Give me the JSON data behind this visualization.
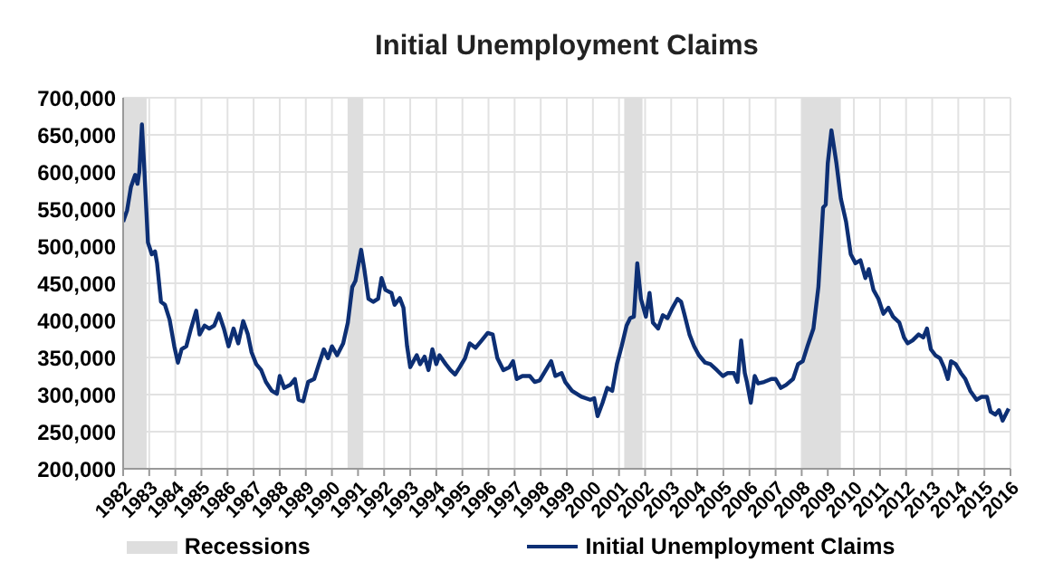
{
  "chart_data": {
    "type": "line",
    "title": "Initial Unemployment Claims",
    "x": [
      1982.0,
      1982.15,
      1982.3,
      1982.46,
      1982.55,
      1982.62,
      1982.72,
      1982.8,
      1982.95,
      1983.1,
      1983.22,
      1983.3,
      1983.45,
      1983.6,
      1983.78,
      1983.96,
      1984.1,
      1984.24,
      1984.42,
      1984.6,
      1984.8,
      1984.93,
      1985.12,
      1985.3,
      1985.49,
      1985.67,
      1985.86,
      1986.04,
      1986.23,
      1986.41,
      1986.6,
      1986.78,
      1986.92,
      1987.1,
      1987.29,
      1987.47,
      1987.7,
      1987.89,
      1988.0,
      1988.17,
      1988.4,
      1988.58,
      1988.72,
      1988.9,
      1989.09,
      1989.32,
      1989.5,
      1989.69,
      1989.85,
      1990.0,
      1990.2,
      1990.43,
      1990.61,
      1990.78,
      1990.9,
      1991.12,
      1991.24,
      1991.4,
      1991.58,
      1991.77,
      1991.9,
      1992.05,
      1992.28,
      1992.4,
      1992.6,
      1992.74,
      1992.88,
      1993.0,
      1993.25,
      1993.38,
      1993.55,
      1993.7,
      1993.85,
      1994.0,
      1994.12,
      1994.36,
      1994.54,
      1994.72,
      1994.9,
      1995.1,
      1995.28,
      1995.5,
      1995.74,
      1995.97,
      1996.16,
      1996.34,
      1996.57,
      1996.8,
      1996.94,
      1997.08,
      1997.3,
      1997.58,
      1997.77,
      1997.96,
      1998.4,
      1998.56,
      1998.8,
      1998.94,
      1999.2,
      1999.56,
      1999.9,
      2000.05,
      2000.18,
      2000.37,
      2000.55,
      2000.74,
      2000.92,
      2001.1,
      2001.29,
      2001.43,
      2001.57,
      2001.7,
      2001.84,
      2002.03,
      2002.17,
      2002.3,
      2002.5,
      2002.68,
      2002.86,
      2003.05,
      2003.24,
      2003.38,
      2003.5,
      2003.7,
      2003.88,
      2004.06,
      2004.3,
      2004.5,
      2004.75,
      2004.98,
      2005.17,
      2005.4,
      2005.54,
      2005.68,
      2005.82,
      2005.9,
      2006.05,
      2006.2,
      2006.33,
      2006.56,
      2006.84,
      2007.0,
      2007.2,
      2007.4,
      2007.67,
      2007.86,
      2008.04,
      2008.22,
      2008.45,
      2008.64,
      2008.82,
      2008.92,
      2009.0,
      2009.14,
      2009.33,
      2009.5,
      2009.7,
      2009.88,
      2010.06,
      2010.25,
      2010.44,
      2010.57,
      2010.75,
      2010.94,
      2011.13,
      2011.32,
      2011.5,
      2011.74,
      2011.92,
      2012.06,
      2012.25,
      2012.48,
      2012.66,
      2012.8,
      2012.95,
      2013.12,
      2013.3,
      2013.45,
      2013.6,
      2013.72,
      2013.9,
      2014.1,
      2014.27,
      2014.46,
      2014.7,
      2014.9,
      2015.1,
      2015.24,
      2015.42,
      2015.56,
      2015.7,
      2015.93
    ],
    "series": [
      {
        "name": "Initial Unemployment Claims",
        "color": "#0d2f74",
        "values": [
          533000,
          548000,
          580000,
          596000,
          584000,
          600000,
          664000,
          612000,
          505000,
          489000,
          493000,
          477000,
          425000,
          421000,
          401000,
          365000,
          343000,
          361000,
          365000,
          389000,
          413000,
          381000,
          393000,
          389000,
          393000,
          409000,
          389000,
          365000,
          389000,
          369000,
          399000,
          381000,
          357000,
          341000,
          333000,
          317000,
          305000,
          301000,
          325000,
          309000,
          313000,
          321000,
          293000,
          291000,
          317000,
          321000,
          341000,
          361000,
          349000,
          365000,
          353000,
          369000,
          397000,
          445000,
          453000,
          495000,
          469000,
          429000,
          425000,
          429000,
          457000,
          441000,
          437000,
          421000,
          430000,
          417000,
          365000,
          337000,
          353000,
          341000,
          351000,
          333000,
          361000,
          341000,
          353000,
          341000,
          333000,
          327000,
          337000,
          349000,
          369000,
          363000,
          373000,
          383000,
          381000,
          349000,
          333000,
          337000,
          345000,
          321000,
          325000,
          325000,
          317000,
          319000,
          345000,
          325000,
          329000,
          317000,
          305000,
          297000,
          293000,
          295000,
          271000,
          289000,
          309000,
          305000,
          341000,
          365000,
          393000,
          403000,
          405000,
          477000,
          429000,
          405000,
          437000,
          397000,
          389000,
          407000,
          403000,
          417000,
          429000,
          425000,
          409000,
          381000,
          365000,
          353000,
          343000,
          341000,
          333000,
          325000,
          329000,
          329000,
          317000,
          373000,
          329000,
          317000,
          289000,
          325000,
          315000,
          317000,
          321000,
          321000,
          309000,
          313000,
          321000,
          341000,
          345000,
          365000,
          389000,
          445000,
          552000,
          556000,
          612000,
          656000,
          612000,
          564000,
          533000,
          489000,
          477000,
          481000,
          457000,
          469000,
          441000,
          429000,
          409000,
          417000,
          405000,
          397000,
          377000,
          369000,
          373000,
          381000,
          377000,
          389000,
          361000,
          353000,
          349000,
          337000,
          321000,
          345000,
          341000,
          329000,
          321000,
          305000,
          293000,
          297000,
          297000,
          277000,
          273000,
          279000,
          265000,
          281000
        ]
      }
    ],
    "xlim": [
      1982,
      2016
    ],
    "xticks": [
      1982,
      1983,
      1984,
      1985,
      1986,
      1987,
      1988,
      1989,
      1990,
      1991,
      1992,
      1993,
      1994,
      1995,
      1996,
      1997,
      1998,
      1999,
      2000,
      2001,
      2002,
      2003,
      2004,
      2005,
      2006,
      2007,
      2008,
      2009,
      2010,
      2011,
      2012,
      2013,
      2014,
      2015,
      2016
    ],
    "ylim": [
      200000,
      700000
    ],
    "yticks": [
      {
        "value": 200000,
        "label": "200,000"
      },
      {
        "value": 250000,
        "label": "250,000"
      },
      {
        "value": 300000,
        "label": "300,000"
      },
      {
        "value": 350000,
        "label": "350,000"
      },
      {
        "value": 400000,
        "label": "400,000"
      },
      {
        "value": 450000,
        "label": "450,000"
      },
      {
        "value": 500000,
        "label": "500,000"
      },
      {
        "value": 550000,
        "label": "550,000"
      },
      {
        "value": 600000,
        "label": "600,000"
      },
      {
        "value": 650000,
        "label": "650,000"
      },
      {
        "value": 700000,
        "label": "700,000"
      }
    ],
    "bands": [
      {
        "axis": "x",
        "from": 1982.0,
        "to": 1982.9,
        "label": "Recessions",
        "color": "#dedede"
      },
      {
        "axis": "x",
        "from": 1990.6,
        "to": 1991.2,
        "color": "#dedede"
      },
      {
        "axis": "x",
        "from": 2001.2,
        "to": 2001.9,
        "color": "#dedede"
      },
      {
        "axis": "x",
        "from": 2008.0,
        "to": 2009.5,
        "color": "#dedede"
      }
    ],
    "grid": true,
    "legend": "bottom",
    "marker": "none"
  }
}
